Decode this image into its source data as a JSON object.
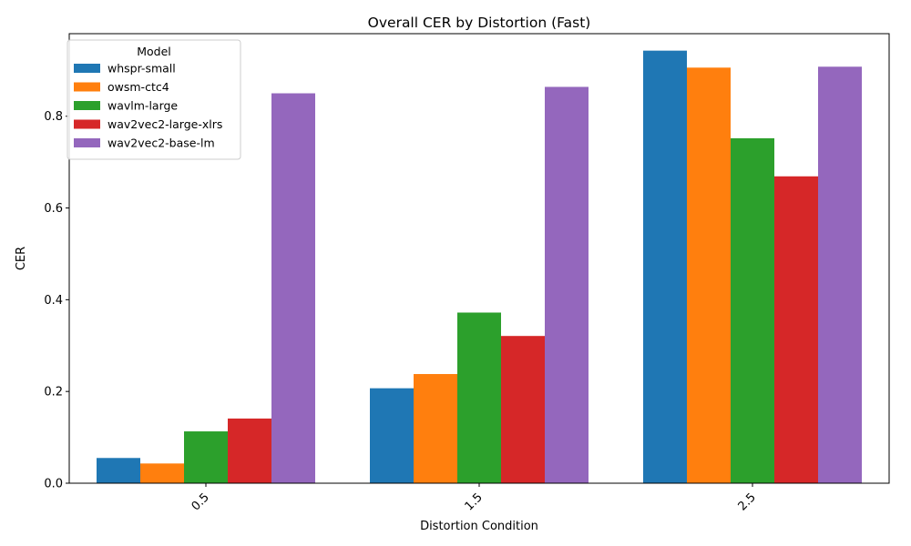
{
  "chart_data": {
    "type": "bar",
    "title": "Overall CER by Distortion (Fast)",
    "xlabel": "Distortion Condition",
    "ylabel": "CER",
    "categories": [
      "0.5",
      "1.5",
      "2.5"
    ],
    "ylim": [
      0,
      0.98
    ],
    "yticks": [
      "0.0",
      "0.2",
      "0.4",
      "0.6",
      "0.8"
    ],
    "legend": {
      "title": "Model",
      "placement": "top-left"
    },
    "series": [
      {
        "name": "whspr-small",
        "color": "#1f77b4",
        "values": [
          0.055,
          0.207,
          0.943
        ]
      },
      {
        "name": "owsm-ctc4",
        "color": "#ff7f0e",
        "values": [
          0.043,
          0.238,
          0.906
        ]
      },
      {
        "name": "wavlm-large",
        "color": "#2ca02c",
        "values": [
          0.113,
          0.372,
          0.752
        ]
      },
      {
        "name": "wav2vec2-large-xlrs",
        "color": "#d62728",
        "values": [
          0.141,
          0.321,
          0.669
        ]
      },
      {
        "name": "wav2vec2-base-lm",
        "color": "#9467bd",
        "values": [
          0.85,
          0.864,
          0.908
        ]
      }
    ]
  }
}
